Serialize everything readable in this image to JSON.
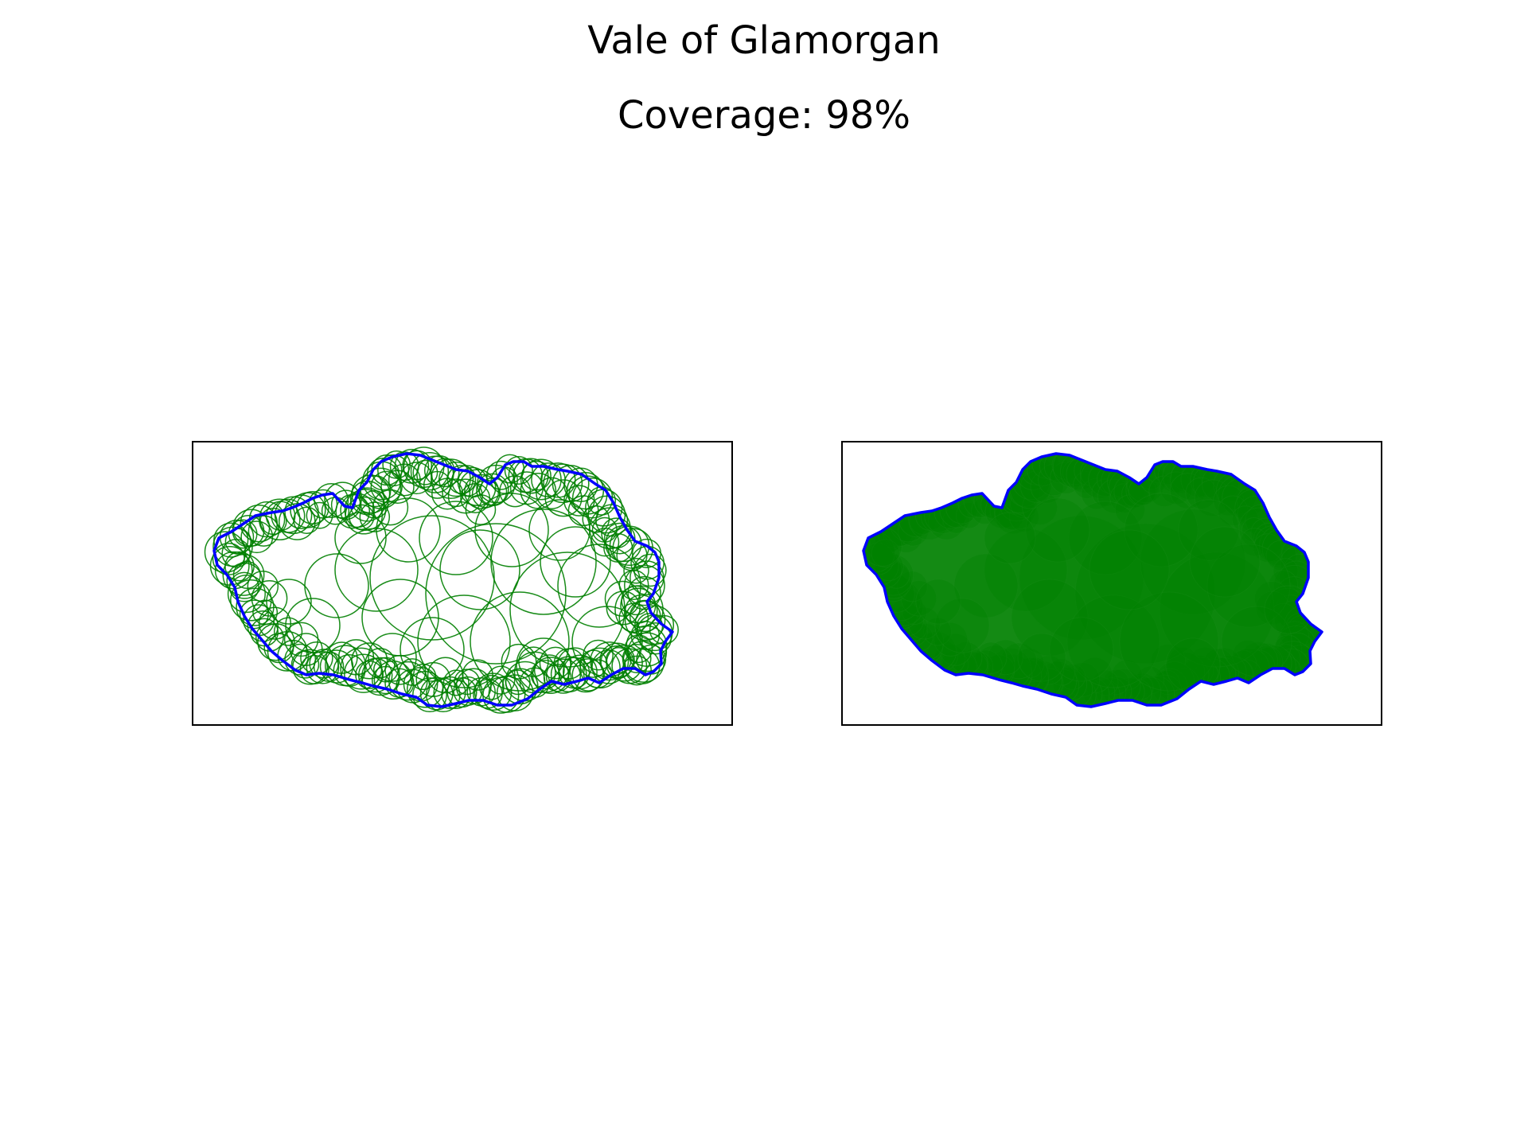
{
  "figure": {
    "title": "Vale of Glamorgan",
    "subtitle": "Coverage: 98%"
  },
  "panels": [
    {
      "id": "circle-outlines",
      "style": "outline"
    },
    {
      "id": "circle-filled",
      "style": "filled"
    }
  ],
  "colors": {
    "boundary": "#0000ff",
    "coverage": "#008000",
    "frame": "#000000",
    "background": "#ffffff"
  },
  "chart_data": {
    "type": "coverage-map",
    "region": "Vale of Glamorgan",
    "coverage_percent": 98
  }
}
